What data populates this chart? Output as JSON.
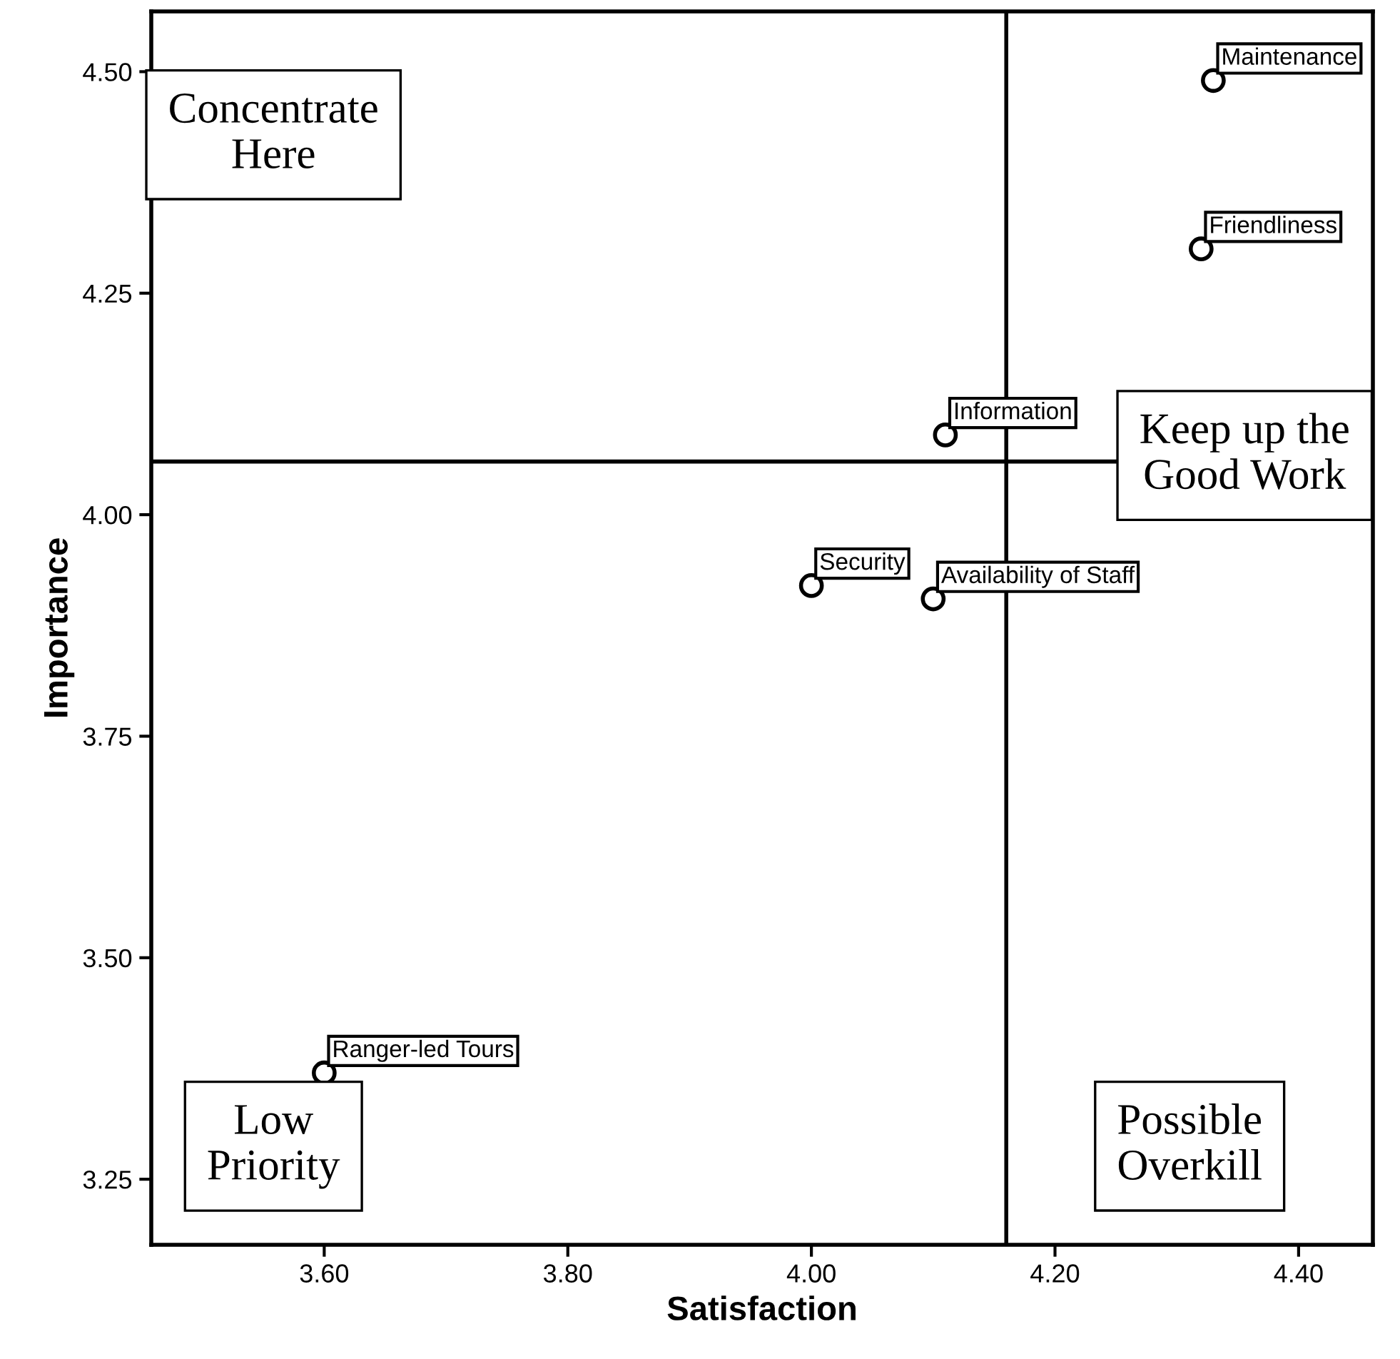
{
  "chart_data": {
    "type": "scatter",
    "xlabel": "Satisfaction",
    "ylabel": "Importance",
    "x": [
      4.33,
      4.32,
      4.11,
      4.0,
      4.1,
      3.6
    ],
    "values": [
      4.49,
      4.3,
      4.09,
      3.92,
      3.905,
      3.37
    ],
    "color": "#000000",
    "marker": "circle",
    "grid": false,
    "xlim": [
      3.458,
      4.461
    ],
    "xticks": [
      {
        "value": 3.6,
        "label": "3.60"
      },
      {
        "value": 3.8,
        "label": "3.80"
      },
      {
        "value": 4.0,
        "label": "4.00"
      },
      {
        "value": 4.2,
        "label": "4.20"
      },
      {
        "value": 4.4,
        "label": "4.40"
      }
    ],
    "ylim": [
      3.176,
      4.568
    ],
    "yticks": [
      {
        "value": 3.25,
        "label": "3.25"
      },
      {
        "value": 3.5,
        "label": "3.50"
      },
      {
        "value": 3.75,
        "label": "3.75"
      },
      {
        "value": 4.0,
        "label": "4.00"
      },
      {
        "value": 4.25,
        "label": "4.25"
      },
      {
        "value": 4.5,
        "label": "4.50"
      }
    ],
    "ref_lines": [
      {
        "axis": "x",
        "value": 4.16,
        "color": "#000000"
      },
      {
        "axis": "y",
        "value": 4.06,
        "color": "#000000"
      }
    ],
    "annotations": [
      {
        "text": "Maintenance",
        "x": 4.33,
        "y": 4.49
      },
      {
        "text": "Friendliness",
        "x": 4.32,
        "y": 4.3
      },
      {
        "text": "Information",
        "x": 4.11,
        "y": 4.09
      },
      {
        "text": "Security",
        "x": 4.0,
        "y": 3.92
      },
      {
        "text": "Availability of Staff",
        "x": 4.1,
        "y": 3.905
      },
      {
        "text": "Ranger-led Tours",
        "x": 3.6,
        "y": 3.37
      },
      "Concentrate\nHere",
      "Keep up the\nGood Work",
      "Low\nPriority",
      "Possible\nOverkill"
    ]
  }
}
